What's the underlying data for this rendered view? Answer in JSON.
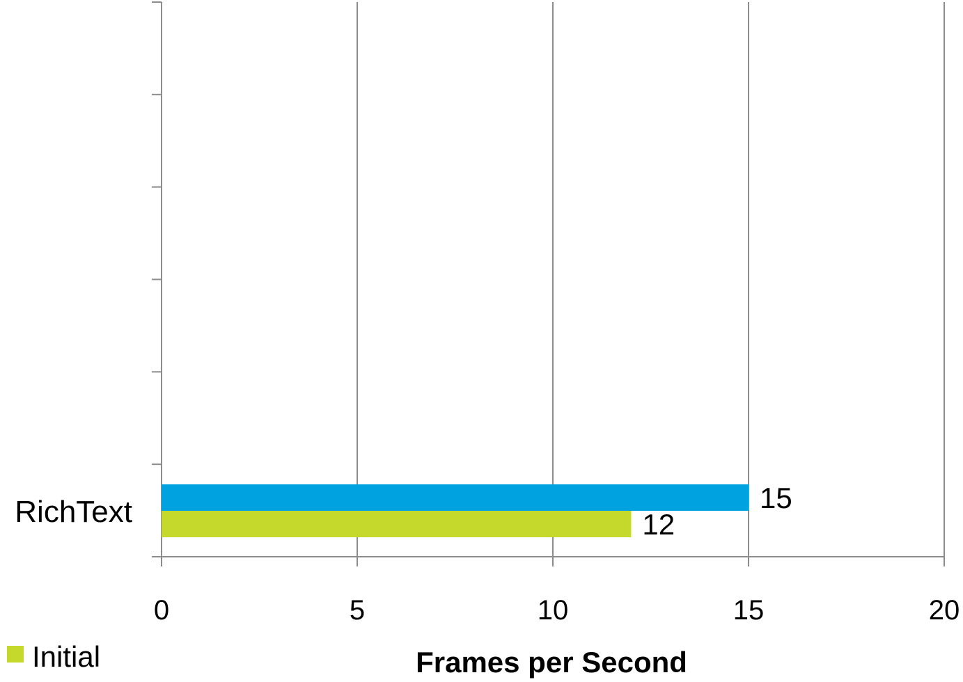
{
  "chart_data": {
    "type": "bar",
    "orientation": "horizontal",
    "categories": [
      "RichText"
    ],
    "series": [
      {
        "name": "",
        "color": "#00a3e0",
        "values": [
          15
        ]
      },
      {
        "name": "Initial",
        "color": "#c5d92d",
        "values": [
          12
        ]
      }
    ],
    "xlabel": "Frames per Second",
    "xlim": [
      0,
      20
    ],
    "xticks": [
      0,
      5,
      10,
      15,
      20
    ],
    "grid": "vertical",
    "legend": "bottom-left"
  }
}
